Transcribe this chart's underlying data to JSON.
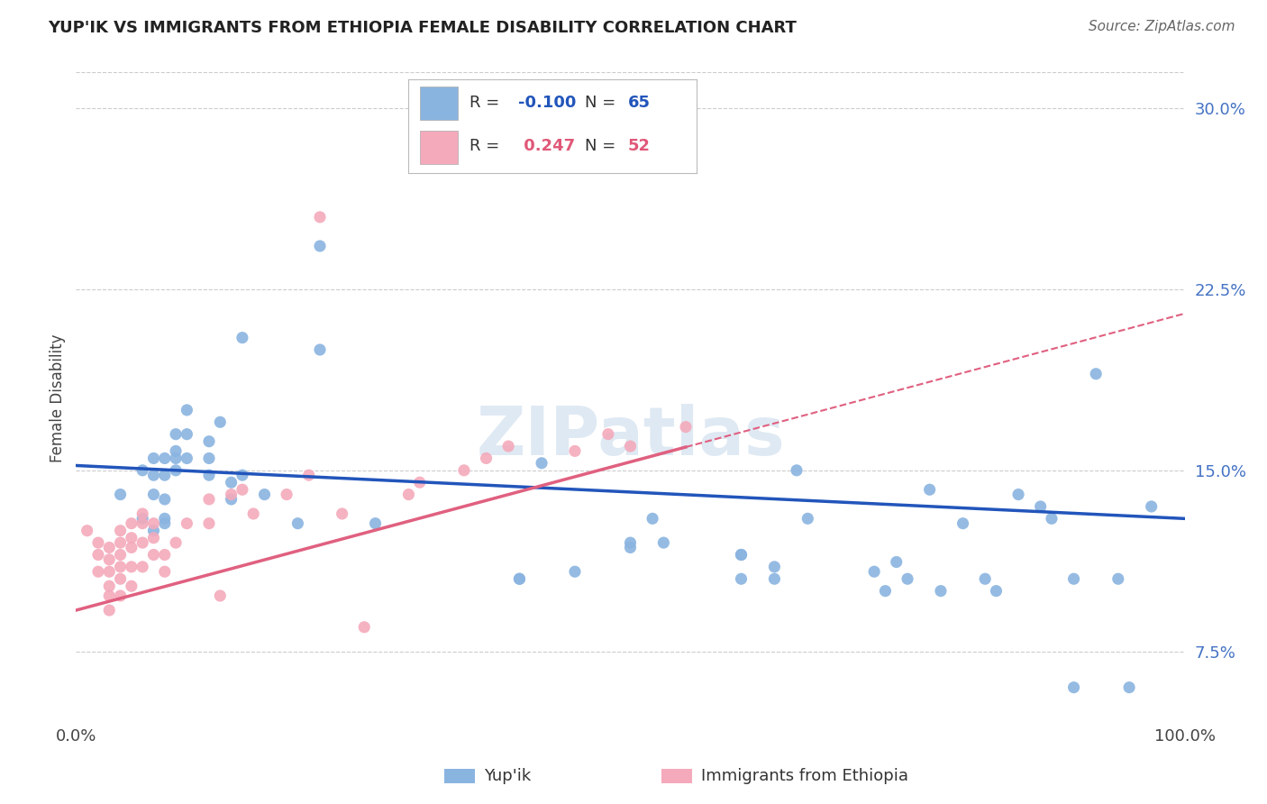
{
  "title": "YUP'IK VS IMMIGRANTS FROM ETHIOPIA FEMALE DISABILITY CORRELATION CHART",
  "source": "Source: ZipAtlas.com",
  "ylabel": "Female Disability",
  "background_color": "#ffffff",
  "grid_color": "#cccccc",
  "watermark": "ZIPatlas",
  "series1_color": "#8ab4e0",
  "series2_color": "#f4aabb",
  "series1_line_color": "#2255bb",
  "series2_line_color": "#e06080",
  "series1_R": -0.1,
  "series1_N": 65,
  "series2_R": 0.247,
  "series2_N": 52,
  "xlim": [
    0.0,
    1.0
  ],
  "ylim": [
    0.045,
    0.315
  ],
  "yticks": [
    0.075,
    0.15,
    0.225,
    0.3
  ],
  "ytick_labels": [
    "7.5%",
    "15.0%",
    "22.5%",
    "30.0%"
  ],
  "series1_x": [
    0.04,
    0.06,
    0.07,
    0.07,
    0.07,
    0.07,
    0.08,
    0.08,
    0.08,
    0.08,
    0.09,
    0.09,
    0.09,
    0.1,
    0.1,
    0.1,
    0.12,
    0.12,
    0.13,
    0.14,
    0.15,
    0.17,
    0.2,
    0.22,
    0.27,
    0.4,
    0.42,
    0.45,
    0.5,
    0.52,
    0.53,
    0.6,
    0.63,
    0.65,
    0.66,
    0.72,
    0.73,
    0.74,
    0.75,
    0.77,
    0.78,
    0.8,
    0.82,
    0.83,
    0.85,
    0.87,
    0.88,
    0.9,
    0.92,
    0.94,
    0.95,
    0.97,
    0.15,
    0.08,
    0.09,
    0.06,
    0.63,
    0.5,
    0.6,
    0.14,
    0.6,
    0.12,
    0.9,
    0.22,
    0.4
  ],
  "series1_y": [
    0.14,
    0.15,
    0.155,
    0.148,
    0.14,
    0.125,
    0.155,
    0.148,
    0.138,
    0.128,
    0.165,
    0.158,
    0.15,
    0.175,
    0.165,
    0.155,
    0.162,
    0.148,
    0.17,
    0.145,
    0.148,
    0.14,
    0.128,
    0.243,
    0.128,
    0.105,
    0.153,
    0.108,
    0.12,
    0.13,
    0.12,
    0.115,
    0.11,
    0.15,
    0.13,
    0.108,
    0.1,
    0.112,
    0.105,
    0.142,
    0.1,
    0.128,
    0.105,
    0.1,
    0.14,
    0.135,
    0.13,
    0.06,
    0.19,
    0.105,
    0.06,
    0.135,
    0.205,
    0.13,
    0.155,
    0.13,
    0.105,
    0.118,
    0.105,
    0.138,
    0.115,
    0.155,
    0.105,
    0.2,
    0.105
  ],
  "series2_x": [
    0.01,
    0.02,
    0.02,
    0.02,
    0.03,
    0.03,
    0.03,
    0.03,
    0.03,
    0.03,
    0.04,
    0.04,
    0.04,
    0.04,
    0.04,
    0.04,
    0.05,
    0.05,
    0.05,
    0.05,
    0.05,
    0.06,
    0.06,
    0.06,
    0.06,
    0.07,
    0.07,
    0.07,
    0.08,
    0.08,
    0.09,
    0.1,
    0.12,
    0.12,
    0.13,
    0.14,
    0.15,
    0.16,
    0.19,
    0.21,
    0.22,
    0.24,
    0.26,
    0.3,
    0.31,
    0.35,
    0.37,
    0.39,
    0.45,
    0.48,
    0.5,
    0.55
  ],
  "series2_y": [
    0.125,
    0.12,
    0.115,
    0.108,
    0.118,
    0.113,
    0.108,
    0.102,
    0.098,
    0.092,
    0.125,
    0.12,
    0.115,
    0.11,
    0.105,
    0.098,
    0.128,
    0.122,
    0.118,
    0.11,
    0.102,
    0.132,
    0.128,
    0.12,
    0.11,
    0.128,
    0.122,
    0.115,
    0.115,
    0.108,
    0.12,
    0.128,
    0.138,
    0.128,
    0.098,
    0.14,
    0.142,
    0.132,
    0.14,
    0.148,
    0.255,
    0.132,
    0.085,
    0.14,
    0.145,
    0.15,
    0.155,
    0.16,
    0.158,
    0.165,
    0.16,
    0.168
  ],
  "series1_line_x0": 0.0,
  "series1_line_x1": 1.0,
  "series1_line_y0": 0.152,
  "series1_line_y1": 0.13,
  "series2_line_x0": 0.0,
  "series2_line_x1": 1.0,
  "series2_line_y0": 0.092,
  "series2_line_y1": 0.215
}
